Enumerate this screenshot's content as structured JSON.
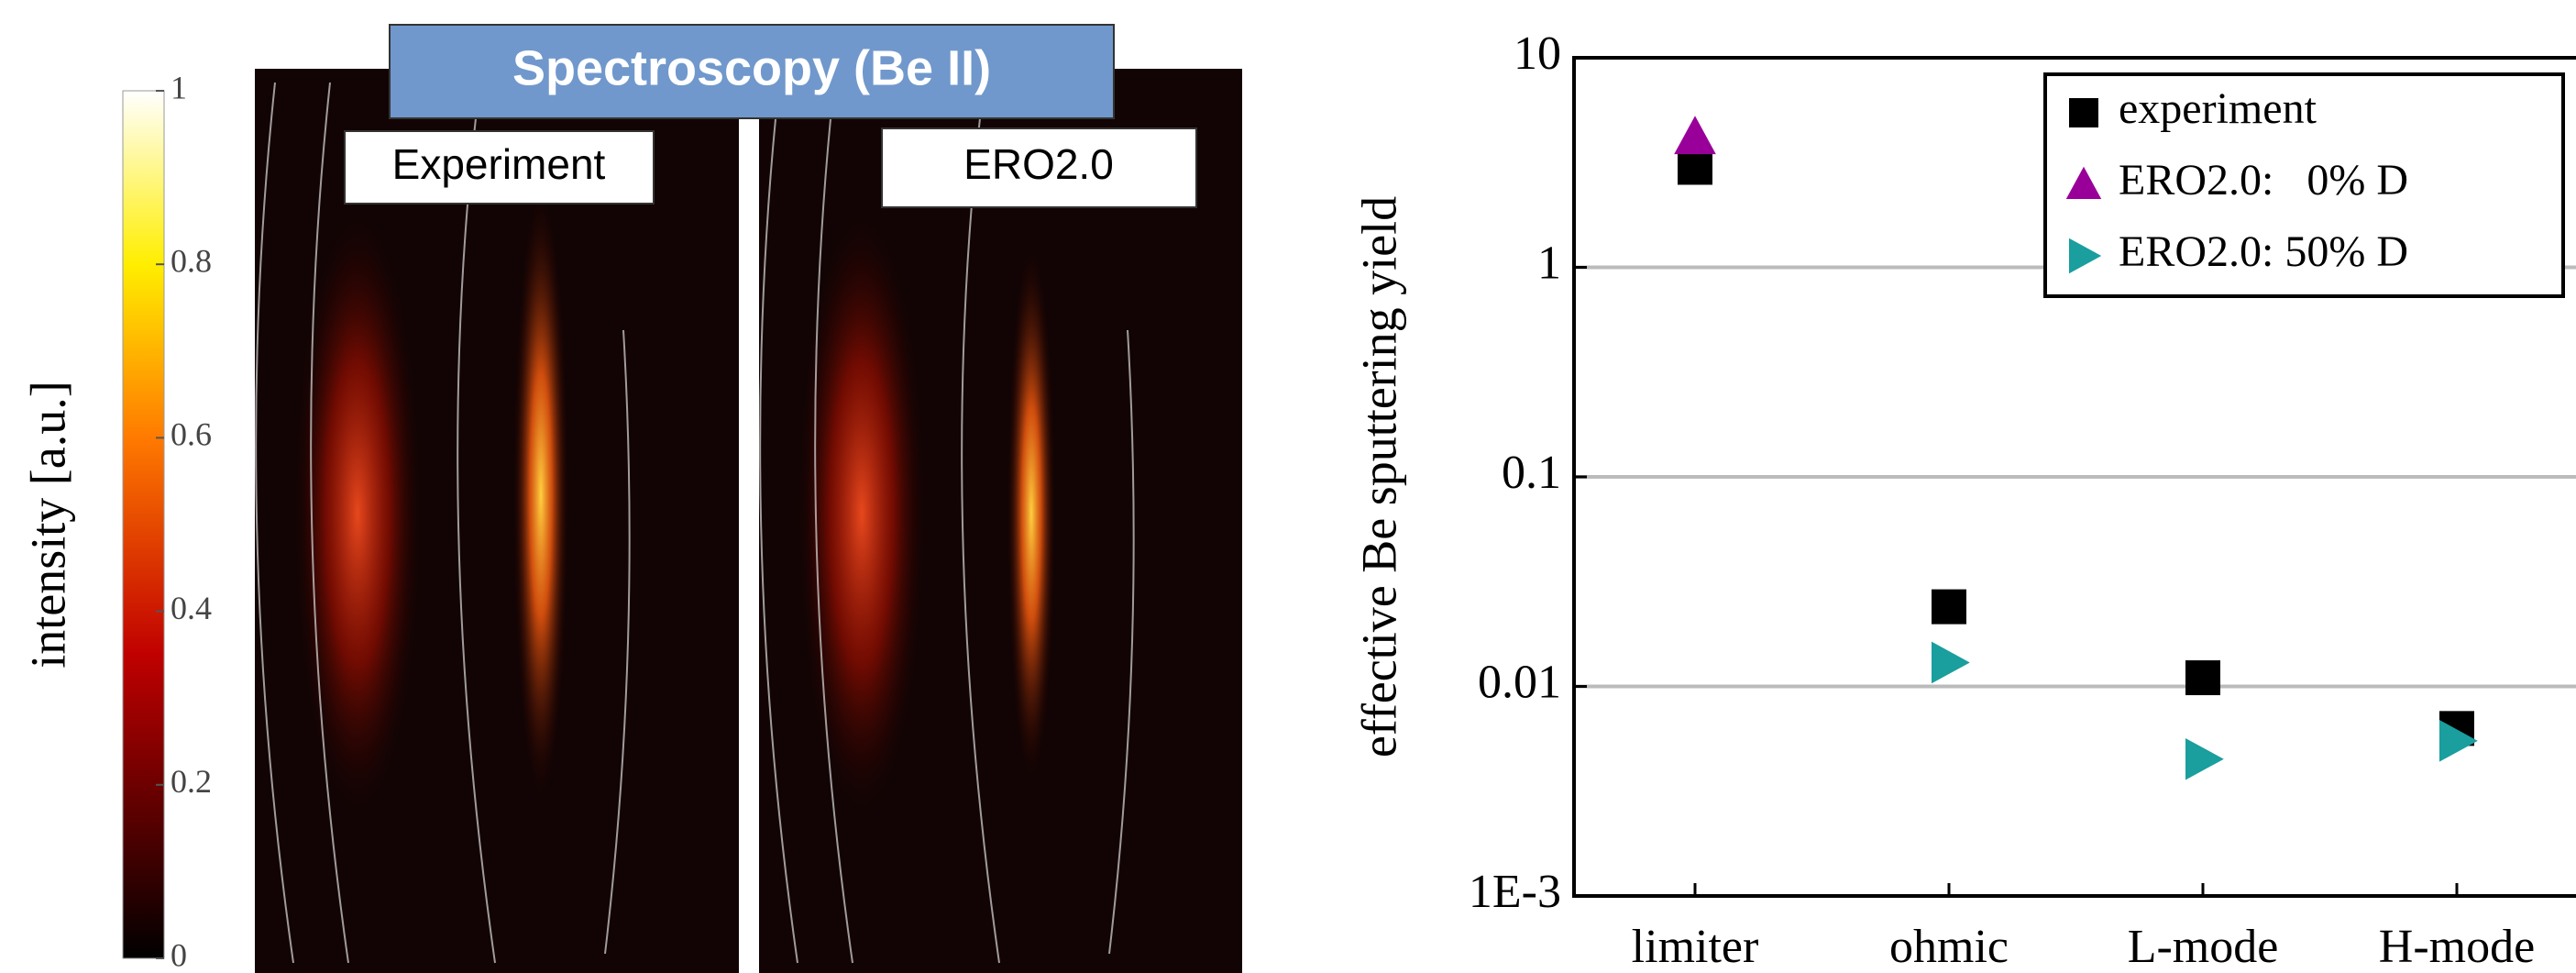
{
  "image_panel": {
    "title": "Spectroscopy (Be II)",
    "labels": [
      "Experiment",
      "ERO2.0"
    ],
    "colorbar": {
      "label": "intensity [a.u.]",
      "lim": [
        0,
        1
      ],
      "ticks": [
        0,
        0.2,
        0.4,
        0.6,
        0.8,
        1
      ]
    }
  },
  "chart_data": {
    "type": "scatter",
    "ylabel": "effective Be sputtering yield",
    "categories": [
      "limiter",
      "ohmic",
      "L-mode",
      "H-mode"
    ],
    "series": [
      {
        "name": "experiment",
        "color": "#000000",
        "marker": "square",
        "values": [
          3.0,
          0.024,
          0.011,
          0.0063
        ]
      },
      {
        "name": "ERO2.0:   0% D",
        "color": "#990099",
        "marker": "triangle-up",
        "values": [
          4.2,
          null,
          null,
          null
        ]
      },
      {
        "name": "ERO2.0: 50% D",
        "color": "#1a9e9e",
        "marker": "triangle-right",
        "values": [
          null,
          0.013,
          0.0045,
          0.0055
        ]
      }
    ],
    "ylim": [
      0.001,
      10
    ],
    "yscale": "log",
    "yticks": [
      {
        "value": 0.001,
        "label": "1E-3"
      },
      0.01,
      0.1,
      1,
      10
    ],
    "grid": true,
    "legend": "upper right"
  }
}
